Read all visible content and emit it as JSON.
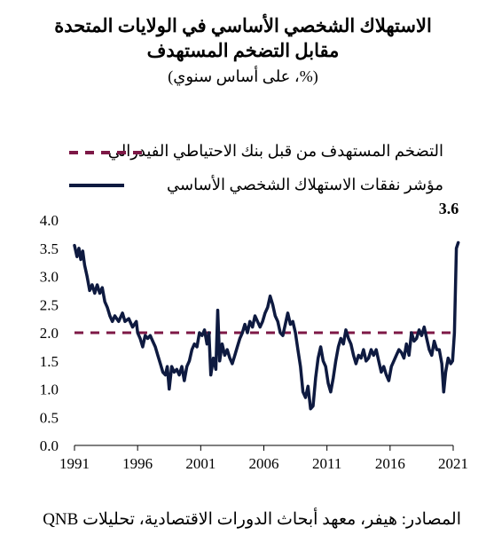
{
  "title_line1": "الاستهلاك الشخصي الأساسي في الولايات المتحدة",
  "title_line2": "مقابل التضخم المستهدف",
  "subtitle": "(%، على أساس سنوي)",
  "source": "المصادر: هيفر، معهد أبحاث الدورات الاقتصادية، تحليلات QNB",
  "colors": {
    "series": "#0e1a40",
    "target": "#7d1846"
  },
  "chart_data": {
    "type": "line",
    "xlim": [
      1991,
      2021
    ],
    "ylim": [
      0,
      4
    ],
    "x_ticks": [
      "1991",
      "1996",
      "2001",
      "2006",
      "2011",
      "2016",
      "2021"
    ],
    "y_ticks": [
      "0.0",
      "0.5",
      "1.0",
      "1.5",
      "2.0",
      "2.5",
      "3.0",
      "3.5",
      "4.0"
    ],
    "grid": false,
    "legend_position": "top",
    "last_value_label": "3.6",
    "series": [
      {
        "name": "مؤشر نفقات الاستهلاك الشخصي الأساسي",
        "style": "solid",
        "points": [
          [
            1991.0,
            3.55
          ],
          [
            1991.2,
            3.35
          ],
          [
            1991.35,
            3.5
          ],
          [
            1991.5,
            3.3
          ],
          [
            1991.65,
            3.45
          ],
          [
            1991.8,
            3.2
          ],
          [
            1992.0,
            3.0
          ],
          [
            1992.2,
            2.75
          ],
          [
            1992.4,
            2.85
          ],
          [
            1992.6,
            2.7
          ],
          [
            1992.8,
            2.85
          ],
          [
            1993.0,
            2.7
          ],
          [
            1993.2,
            2.8
          ],
          [
            1993.4,
            2.55
          ],
          [
            1993.6,
            2.45
          ],
          [
            1993.8,
            2.3
          ],
          [
            1994.0,
            2.2
          ],
          [
            1994.2,
            2.3
          ],
          [
            1994.5,
            2.2
          ],
          [
            1994.8,
            2.35
          ],
          [
            1995.0,
            2.2
          ],
          [
            1995.3,
            2.25
          ],
          [
            1995.6,
            2.1
          ],
          [
            1995.9,
            2.2
          ],
          [
            1996.0,
            2.0
          ],
          [
            1996.2,
            1.9
          ],
          [
            1996.4,
            1.75
          ],
          [
            1996.6,
            1.95
          ],
          [
            1996.8,
            1.9
          ],
          [
            1997.0,
            1.95
          ],
          [
            1997.2,
            1.85
          ],
          [
            1997.4,
            1.75
          ],
          [
            1997.6,
            1.6
          ],
          [
            1997.8,
            1.45
          ],
          [
            1998.0,
            1.3
          ],
          [
            1998.2,
            1.25
          ],
          [
            1998.35,
            1.4
          ],
          [
            1998.5,
            1.0
          ],
          [
            1998.7,
            1.4
          ],
          [
            1998.9,
            1.3
          ],
          [
            1999.1,
            1.35
          ],
          [
            1999.3,
            1.25
          ],
          [
            1999.5,
            1.4
          ],
          [
            1999.7,
            1.15
          ],
          [
            1999.9,
            1.4
          ],
          [
            2000.1,
            1.5
          ],
          [
            2000.3,
            1.7
          ],
          [
            2000.5,
            1.8
          ],
          [
            2000.7,
            1.75
          ],
          [
            2000.9,
            2.0
          ],
          [
            2001.1,
            1.95
          ],
          [
            2001.3,
            2.05
          ],
          [
            2001.5,
            1.8
          ],
          [
            2001.65,
            2.0
          ],
          [
            2001.8,
            1.25
          ],
          [
            2002.0,
            1.55
          ],
          [
            2002.2,
            1.35
          ],
          [
            2002.35,
            2.4
          ],
          [
            2002.5,
            1.5
          ],
          [
            2002.7,
            1.8
          ],
          [
            2002.9,
            1.6
          ],
          [
            2003.1,
            1.7
          ],
          [
            2003.3,
            1.55
          ],
          [
            2003.5,
            1.45
          ],
          [
            2003.7,
            1.6
          ],
          [
            2003.9,
            1.75
          ],
          [
            2004.1,
            1.9
          ],
          [
            2004.3,
            2.0
          ],
          [
            2004.5,
            2.15
          ],
          [
            2004.7,
            2.0
          ],
          [
            2004.9,
            2.2
          ],
          [
            2005.1,
            2.1
          ],
          [
            2005.3,
            2.3
          ],
          [
            2005.5,
            2.2
          ],
          [
            2005.7,
            2.1
          ],
          [
            2005.9,
            2.2
          ],
          [
            2006.1,
            2.35
          ],
          [
            2006.3,
            2.45
          ],
          [
            2006.5,
            2.65
          ],
          [
            2006.7,
            2.5
          ],
          [
            2006.9,
            2.3
          ],
          [
            2007.1,
            2.2
          ],
          [
            2007.3,
            2.0
          ],
          [
            2007.5,
            1.95
          ],
          [
            2007.7,
            2.15
          ],
          [
            2007.9,
            2.35
          ],
          [
            2008.1,
            2.15
          ],
          [
            2008.3,
            2.2
          ],
          [
            2008.5,
            2.0
          ],
          [
            2008.7,
            1.7
          ],
          [
            2008.9,
            1.4
          ],
          [
            2009.1,
            0.95
          ],
          [
            2009.3,
            0.85
          ],
          [
            2009.5,
            1.05
          ],
          [
            2009.7,
            0.65
          ],
          [
            2009.9,
            0.7
          ],
          [
            2010.1,
            1.2
          ],
          [
            2010.3,
            1.55
          ],
          [
            2010.5,
            1.75
          ],
          [
            2010.7,
            1.5
          ],
          [
            2010.9,
            1.4
          ],
          [
            2011.1,
            1.1
          ],
          [
            2011.3,
            0.95
          ],
          [
            2011.5,
            1.2
          ],
          [
            2011.7,
            1.5
          ],
          [
            2011.9,
            1.75
          ],
          [
            2012.1,
            1.9
          ],
          [
            2012.3,
            1.8
          ],
          [
            2012.5,
            2.05
          ],
          [
            2012.7,
            1.9
          ],
          [
            2012.9,
            1.8
          ],
          [
            2013.1,
            1.6
          ],
          [
            2013.3,
            1.45
          ],
          [
            2013.5,
            1.6
          ],
          [
            2013.7,
            1.55
          ],
          [
            2013.9,
            1.7
          ],
          [
            2014.1,
            1.5
          ],
          [
            2014.3,
            1.55
          ],
          [
            2014.5,
            1.7
          ],
          [
            2014.7,
            1.6
          ],
          [
            2014.9,
            1.7
          ],
          [
            2015.1,
            1.5
          ],
          [
            2015.3,
            1.3
          ],
          [
            2015.5,
            1.4
          ],
          [
            2015.7,
            1.25
          ],
          [
            2015.9,
            1.15
          ],
          [
            2016.1,
            1.4
          ],
          [
            2016.3,
            1.5
          ],
          [
            2016.5,
            1.6
          ],
          [
            2016.7,
            1.7
          ],
          [
            2016.9,
            1.65
          ],
          [
            2017.1,
            1.55
          ],
          [
            2017.3,
            1.8
          ],
          [
            2017.5,
            1.6
          ],
          [
            2017.7,
            2.0
          ],
          [
            2017.9,
            1.85
          ],
          [
            2018.1,
            1.9
          ],
          [
            2018.3,
            2.05
          ],
          [
            2018.5,
            1.95
          ],
          [
            2018.7,
            2.1
          ],
          [
            2018.9,
            1.9
          ],
          [
            2019.1,
            1.7
          ],
          [
            2019.3,
            1.6
          ],
          [
            2019.5,
            1.85
          ],
          [
            2019.7,
            1.7
          ],
          [
            2019.9,
            1.7
          ],
          [
            2020.1,
            1.45
          ],
          [
            2020.25,
            0.95
          ],
          [
            2020.4,
            1.3
          ],
          [
            2020.6,
            1.55
          ],
          [
            2020.8,
            1.45
          ],
          [
            2020.95,
            1.5
          ],
          [
            2021.1,
            2.0
          ],
          [
            2021.25,
            3.5
          ],
          [
            2021.4,
            3.6
          ]
        ]
      },
      {
        "name": "التضخم المستهدف من قبل بنك الاحتياطي الفيدرالي",
        "style": "dashed",
        "points": [
          [
            1991.0,
            2.0
          ],
          [
            2021.0,
            2.0
          ]
        ]
      }
    ]
  }
}
